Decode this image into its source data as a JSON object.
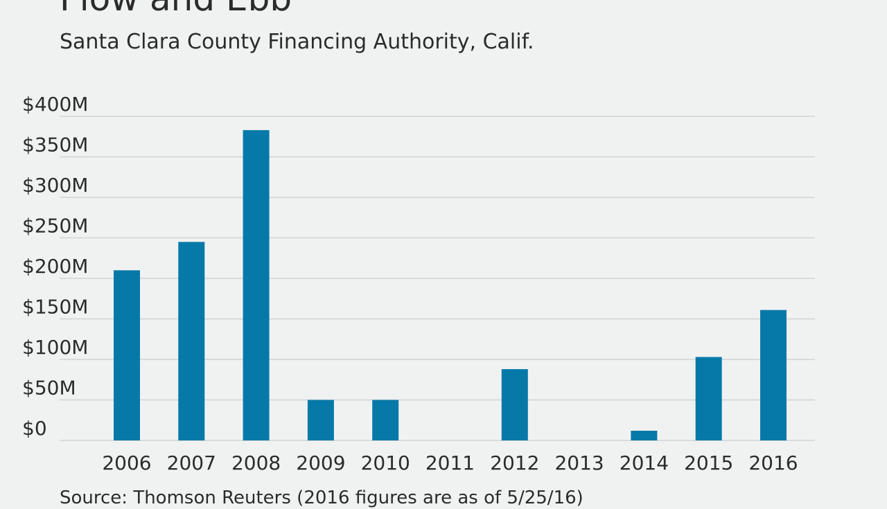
{
  "header": {
    "title": "Flow and Ebb",
    "subtitle": "Santa Clara County Financing Authority, Calif."
  },
  "footer": {
    "source": "Source: Thomson Reuters (2016 figures are as of 5/25/16)"
  },
  "colors": {
    "bar": "#0779a8",
    "grid": "#cfd3d3",
    "background": "#f0f2f2",
    "text": "#2b2b2b"
  },
  "chart_data": {
    "type": "bar",
    "categories": [
      "2006",
      "2007",
      "2008",
      "2009",
      "2010",
      "2011",
      "2012",
      "2013",
      "2014",
      "2015",
      "2016"
    ],
    "values": [
      210,
      245,
      383,
      50,
      50,
      0,
      88,
      0,
      12,
      103,
      161
    ],
    "ylim": [
      0,
      400
    ],
    "yticks": [
      0,
      50,
      100,
      150,
      200,
      250,
      300,
      350,
      400
    ],
    "ytick_labels": [
      "$0",
      "$50M",
      "$100M",
      "$150M",
      "$200M",
      "$250M",
      "$300M",
      "$350M",
      "$400M"
    ],
    "grid": true,
    "legend": "none"
  }
}
